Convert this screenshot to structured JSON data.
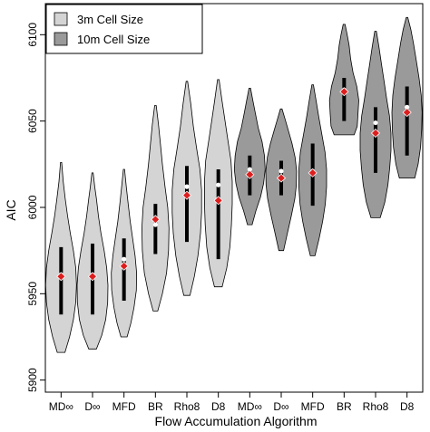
{
  "chart_data": {
    "type": "violin",
    "xlabel": "Flow Accumulation Algorithm",
    "ylabel": "AIC",
    "ylim": [
      5893,
      6118
    ],
    "yticks": [
      5900,
      5950,
      6000,
      6050,
      6100
    ],
    "categories": [
      "MD∞",
      "D∞",
      "MFD",
      "BR",
      "Rho8",
      "D8",
      "MD∞",
      "D∞",
      "MFD",
      "BR",
      "Rho8",
      "D8"
    ],
    "legend": {
      "position": "top-left",
      "entries": [
        {
          "label": "3m Cell Size",
          "color": "#d4d4d4"
        },
        {
          "label": "10m Cell Size",
          "color": "#9a9a9a"
        }
      ]
    },
    "series": [
      {
        "group": "3m Cell Size",
        "category": "MD∞",
        "min": 5916,
        "max": 6026,
        "q1": 5938,
        "q3": 5977,
        "median": 5961,
        "mean": 5960,
        "profile": [
          [
            5916,
            0.25
          ],
          [
            5925,
            0.55
          ],
          [
            5935,
            0.8
          ],
          [
            5945,
            0.95
          ],
          [
            5955,
            1.0
          ],
          [
            5965,
            0.95
          ],
          [
            5975,
            0.8
          ],
          [
            5985,
            0.6
          ],
          [
            5995,
            0.42
          ],
          [
            6005,
            0.27
          ],
          [
            6015,
            0.14
          ],
          [
            6026,
            0.04
          ]
        ]
      },
      {
        "group": "3m Cell Size",
        "category": "D∞",
        "min": 5918,
        "max": 6020,
        "q1": 5938,
        "q3": 5979,
        "median": 5961,
        "mean": 5960,
        "profile": [
          [
            5918,
            0.25
          ],
          [
            5926,
            0.6
          ],
          [
            5935,
            0.85
          ],
          [
            5945,
            0.98
          ],
          [
            5955,
            1.0
          ],
          [
            5965,
            0.92
          ],
          [
            5975,
            0.75
          ],
          [
            5985,
            0.55
          ],
          [
            5995,
            0.38
          ],
          [
            6005,
            0.25
          ],
          [
            6012,
            0.14
          ],
          [
            6020,
            0.04
          ]
        ]
      },
      {
        "group": "3m Cell Size",
        "category": "MFD",
        "min": 5925,
        "max": 6022,
        "q1": 5946,
        "q3": 5982,
        "median": 5970,
        "mean": 5966,
        "profile": [
          [
            5925,
            0.2
          ],
          [
            5933,
            0.45
          ],
          [
            5942,
            0.65
          ],
          [
            5952,
            0.8
          ],
          [
            5962,
            0.82
          ],
          [
            5972,
            0.72
          ],
          [
            5982,
            0.56
          ],
          [
            5992,
            0.4
          ],
          [
            6002,
            0.27
          ],
          [
            6012,
            0.15
          ],
          [
            6022,
            0.04
          ]
        ]
      },
      {
        "group": "3m Cell Size",
        "category": "BR",
        "min": 5940,
        "max": 6059,
        "q1": 5973,
        "q3": 6002,
        "median": 5990,
        "mean": 5993,
        "profile": [
          [
            5940,
            0.15
          ],
          [
            5950,
            0.45
          ],
          [
            5962,
            0.72
          ],
          [
            5975,
            0.85
          ],
          [
            5988,
            0.88
          ],
          [
            6000,
            0.8
          ],
          [
            6012,
            0.62
          ],
          [
            6025,
            0.45
          ],
          [
            6037,
            0.32
          ],
          [
            6048,
            0.2
          ],
          [
            6059,
            0.05
          ]
        ]
      },
      {
        "group": "3m Cell Size",
        "category": "Rho8",
        "min": 5949,
        "max": 6073,
        "q1": 5980,
        "q3": 6024,
        "median": 6012,
        "mean": 6007,
        "profile": [
          [
            5949,
            0.2
          ],
          [
            5960,
            0.48
          ],
          [
            5972,
            0.72
          ],
          [
            5985,
            0.88
          ],
          [
            5997,
            0.95
          ],
          [
            6010,
            0.95
          ],
          [
            6022,
            0.85
          ],
          [
            6035,
            0.62
          ],
          [
            6047,
            0.42
          ],
          [
            6060,
            0.25
          ],
          [
            6073,
            0.05
          ]
        ]
      },
      {
        "group": "3m Cell Size",
        "category": "D8",
        "min": 5954,
        "max": 6074,
        "q1": 5970,
        "q3": 6022,
        "median": 6013,
        "mean": 6004,
        "profile": [
          [
            5954,
            0.25
          ],
          [
            5965,
            0.55
          ],
          [
            5977,
            0.75
          ],
          [
            5990,
            0.85
          ],
          [
            6002,
            0.9
          ],
          [
            6015,
            0.9
          ],
          [
            6027,
            0.82
          ],
          [
            6040,
            0.6
          ],
          [
            6052,
            0.4
          ],
          [
            6063,
            0.22
          ],
          [
            6074,
            0.05
          ]
        ]
      },
      {
        "group": "10m Cell Size",
        "category": "MD∞",
        "min": 5990,
        "max": 6069,
        "q1": 6007,
        "q3": 6030,
        "median": 6022,
        "mean": 6019,
        "profile": [
          [
            5990,
            0.15
          ],
          [
            5998,
            0.4
          ],
          [
            6006,
            0.7
          ],
          [
            6014,
            0.9
          ],
          [
            6022,
            1.0
          ],
          [
            6030,
            0.95
          ],
          [
            6038,
            0.8
          ],
          [
            6046,
            0.55
          ],
          [
            6055,
            0.35
          ],
          [
            6062,
            0.2
          ],
          [
            6069,
            0.05
          ]
        ]
      },
      {
        "group": "10m Cell Size",
        "category": "D∞",
        "min": 5975,
        "max": 6057,
        "q1": 6007,
        "q3": 6027,
        "median": 6021,
        "mean": 6017,
        "profile": [
          [
            5975,
            0.15
          ],
          [
            5985,
            0.4
          ],
          [
            5995,
            0.65
          ],
          [
            6005,
            0.88
          ],
          [
            6013,
            0.98
          ],
          [
            6021,
            1.0
          ],
          [
            6029,
            0.9
          ],
          [
            6037,
            0.7
          ],
          [
            6045,
            0.45
          ],
          [
            6051,
            0.25
          ],
          [
            6057,
            0.05
          ]
        ]
      },
      {
        "group": "10m Cell Size",
        "category": "MFD",
        "min": 5972,
        "max": 6071,
        "q1": 6001,
        "q3": 6037,
        "median": 6021,
        "mean": 6020,
        "profile": [
          [
            5972,
            0.15
          ],
          [
            5982,
            0.42
          ],
          [
            5992,
            0.65
          ],
          [
            6002,
            0.82
          ],
          [
            6012,
            0.9
          ],
          [
            6022,
            0.9
          ],
          [
            6032,
            0.8
          ],
          [
            6042,
            0.6
          ],
          [
            6052,
            0.4
          ],
          [
            6062,
            0.22
          ],
          [
            6071,
            0.05
          ]
        ]
      },
      {
        "group": "10m Cell Size",
        "category": "BR",
        "min": 6042,
        "max": 6106,
        "q1": 6050,
        "q3": 6075,
        "median": 6068,
        "mean": 6067,
        "profile": [
          [
            6042,
            0.65
          ],
          [
            6047,
            0.85
          ],
          [
            6054,
            0.9
          ],
          [
            6062,
            0.95
          ],
          [
            6070,
            0.82
          ],
          [
            6078,
            0.58
          ],
          [
            6086,
            0.42
          ],
          [
            6094,
            0.32
          ],
          [
            6100,
            0.2
          ],
          [
            6106,
            0.06
          ]
        ]
      },
      {
        "group": "10m Cell Size",
        "category": "Rho8",
        "min": 5994,
        "max": 6102,
        "q1": 6020,
        "q3": 6058,
        "median": 6049,
        "mean": 6043,
        "profile": [
          [
            5994,
            0.3
          ],
          [
            6003,
            0.6
          ],
          [
            6013,
            0.8
          ],
          [
            6023,
            0.92
          ],
          [
            6033,
            1.0
          ],
          [
            6043,
            1.0
          ],
          [
            6053,
            0.9
          ],
          [
            6063,
            0.72
          ],
          [
            6073,
            0.55
          ],
          [
            6083,
            0.38
          ],
          [
            6093,
            0.22
          ],
          [
            6102,
            0.05
          ]
        ]
      },
      {
        "group": "10m Cell Size",
        "category": "D8",
        "min": 6017,
        "max": 6110,
        "q1": 6030,
        "q3": 6070,
        "median": 6058,
        "mean": 6055,
        "profile": [
          [
            6017,
            0.5
          ],
          [
            6025,
            0.72
          ],
          [
            6035,
            0.88
          ],
          [
            6045,
            0.95
          ],
          [
            6055,
            0.98
          ],
          [
            6065,
            0.92
          ],
          [
            6075,
            0.78
          ],
          [
            6085,
            0.6
          ],
          [
            6095,
            0.42
          ],
          [
            6103,
            0.25
          ],
          [
            6110,
            0.05
          ]
        ]
      }
    ],
    "colors": {
      "violin_3m": "#d4d4d4",
      "violin_10m": "#9a9a9a",
      "mean_marker": "#dd1e1e",
      "median_marker": "#ffffff",
      "box_line": "#000000"
    }
  }
}
